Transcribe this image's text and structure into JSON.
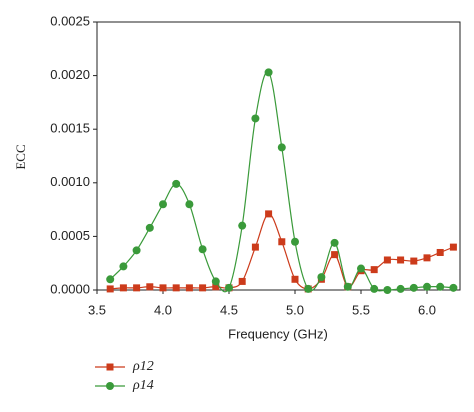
{
  "chart_data": {
    "type": "line",
    "x_label": "Frequency (GHz)",
    "y_label": "ECC",
    "x": [
      3.6,
      3.7,
      3.8,
      3.9,
      4.0,
      4.1,
      4.2,
      4.3,
      4.4,
      4.5,
      4.6,
      4.7,
      4.8,
      4.9,
      5.0,
      5.1,
      5.2,
      5.3,
      5.4,
      5.5,
      5.6,
      5.7,
      5.8,
      5.9,
      6.0,
      6.1,
      6.2
    ],
    "series": [
      {
        "name": "ρ12",
        "color": "#cc3b1b",
        "marker": "square",
        "values": [
          1e-05,
          2e-05,
          2e-05,
          3e-05,
          2e-05,
          2e-05,
          2e-05,
          2e-05,
          3e-05,
          2e-05,
          8e-05,
          0.0004,
          0.00071,
          0.00045,
          0.0001,
          1e-05,
          0.0001,
          0.00033,
          3e-05,
          0.00018,
          0.00019,
          0.00028,
          0.00028,
          0.00027,
          0.0003,
          0.00035,
          0.0004
        ]
      },
      {
        "name": "ρ14",
        "color": "#3a9a3a",
        "marker": "circle",
        "values": [
          0.0001,
          0.00022,
          0.00037,
          0.00058,
          0.0008,
          0.00099,
          0.0008,
          0.00038,
          8e-05,
          2e-05,
          0.0006,
          0.0016,
          0.00203,
          0.00133,
          0.00045,
          1e-05,
          0.00012,
          0.00044,
          3e-05,
          0.0002,
          1e-05,
          0,
          1e-05,
          2e-05,
          3e-05,
          3e-05,
          2e-05
        ]
      }
    ],
    "xlim": [
      3.5,
      6.25
    ],
    "xticks": [
      3.5,
      {
        "value": 4,
        "label": "4.0"
      },
      4.5,
      {
        "value": 5,
        "label": "5.0"
      },
      5.5,
      {
        "value": 6,
        "label": "6.0"
      }
    ],
    "ylim": [
      0,
      0.0025
    ],
    "yticks": [
      {
        "value": 0,
        "label": "0.0000"
      },
      {
        "value": 0.0005,
        "label": "0.0005"
      },
      {
        "value": 0.001,
        "label": "0.0010"
      },
      {
        "value": 0.0015,
        "label": "0.0015"
      },
      {
        "value": 0.002,
        "label": "0.0020"
      },
      {
        "value": 0.0025,
        "label": "0.0025"
      }
    ],
    "legend": "bottom-left"
  }
}
